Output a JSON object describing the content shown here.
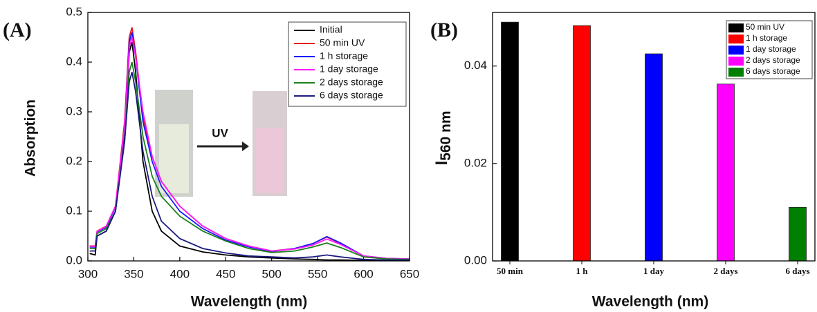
{
  "chart_data": [
    {
      "type": "line",
      "panel_label": "(A)",
      "x_label": "Wavelength (nm)",
      "y_label": "Absorption",
      "annotation": "UV",
      "x": [
        302,
        308,
        310,
        320,
        330,
        340,
        345,
        348,
        352,
        360,
        370,
        380,
        400,
        425,
        450,
        475,
        500,
        525,
        545,
        560,
        575,
        600,
        625,
        650
      ],
      "xlim": [
        300,
        650
      ],
      "xticks": [
        300,
        350,
        400,
        450,
        500,
        550,
        600,
        650
      ],
      "ylim": [
        0,
        0.5
      ],
      "yticks": [
        {
          "value": 0,
          "label": "0.0"
        },
        0.1,
        0.2,
        0.3,
        0.4,
        0.5
      ],
      "legend_position": "top-right",
      "series": [
        {
          "name": "Initial",
          "color": "#000000",
          "values": [
            0.015,
            0.012,
            0.05,
            0.06,
            0.1,
            0.25,
            0.42,
            0.44,
            0.38,
            0.2,
            0.1,
            0.06,
            0.03,
            0.018,
            0.012,
            0.008,
            0.006,
            0.004,
            0.003,
            0.002,
            0.002,
            0.001,
            0.001,
            0.001
          ]
        },
        {
          "name": "50 min UV",
          "color": "#e8141c",
          "values": [
            0.03,
            0.03,
            0.06,
            0.07,
            0.11,
            0.28,
            0.45,
            0.47,
            0.42,
            0.29,
            0.21,
            0.16,
            0.11,
            0.07,
            0.045,
            0.03,
            0.02,
            0.025,
            0.035,
            0.048,
            0.035,
            0.01,
            0.005,
            0.004
          ]
        },
        {
          "name": "1 h storage",
          "color": "#1a1aff",
          "values": [
            0.028,
            0.028,
            0.058,
            0.068,
            0.108,
            0.27,
            0.44,
            0.46,
            0.41,
            0.28,
            0.2,
            0.15,
            0.1,
            0.065,
            0.042,
            0.028,
            0.019,
            0.025,
            0.035,
            0.049,
            0.036,
            0.01,
            0.005,
            0.004
          ]
        },
        {
          "name": "1 day storage",
          "color": "#ff1aff",
          "values": [
            0.029,
            0.029,
            0.059,
            0.07,
            0.11,
            0.27,
            0.43,
            0.45,
            0.41,
            0.3,
            0.21,
            0.16,
            0.11,
            0.07,
            0.045,
            0.03,
            0.02,
            0.024,
            0.032,
            0.044,
            0.033,
            0.01,
            0.005,
            0.004
          ]
        },
        {
          "name": "2 days storage",
          "color": "#1a7f1a",
          "values": [
            0.025,
            0.025,
            0.055,
            0.065,
            0.1,
            0.24,
            0.38,
            0.4,
            0.36,
            0.25,
            0.17,
            0.13,
            0.09,
            0.06,
            0.04,
            0.025,
            0.017,
            0.02,
            0.028,
            0.036,
            0.027,
            0.008,
            0.004,
            0.003
          ]
        },
        {
          "name": "6 days storage",
          "color": "#1a1a7f",
          "values": [
            0.02,
            0.02,
            0.05,
            0.06,
            0.1,
            0.24,
            0.36,
            0.38,
            0.34,
            0.22,
            0.13,
            0.08,
            0.045,
            0.025,
            0.016,
            0.01,
            0.008,
            0.006,
            0.008,
            0.012,
            0.008,
            0.003,
            0.002,
            0.002
          ]
        }
      ]
    },
    {
      "type": "bar",
      "panel_label": "(B)",
      "x_label": "Wavelength (nm)",
      "y_label": "I",
      "y_label_sub": "560 nm",
      "categories": [
        "50 min",
        "1 h",
        "1 day",
        "2 days",
        "6 days"
      ],
      "values": [
        0.049,
        0.0483,
        0.0425,
        0.0363,
        0.011
      ],
      "colors": [
        "#000000",
        "#ff0000",
        "#0000ff",
        "#ff00ff",
        "#007f00"
      ],
      "legend": [
        "50 min UV",
        "1 h storage",
        "1 day storage",
        "2 days storage",
        "6 days storage"
      ],
      "legend_position": "top-right",
      "ylim": [
        0,
        0.051
      ],
      "yticks": [
        {
          "value": 0,
          "label": "0.00"
        },
        {
          "value": 0.02,
          "label": "0.02"
        },
        {
          "value": 0.04,
          "label": "0.04"
        }
      ]
    }
  ]
}
